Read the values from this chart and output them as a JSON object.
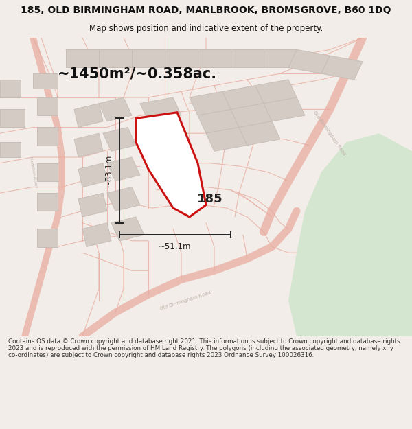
{
  "title_line1": "185, OLD BIRMINGHAM ROAD, MARLBROOK, BROMSGROVE, B60 1DQ",
  "title_line2": "Map shows position and indicative extent of the property.",
  "area_text": "~1450m²/~0.358ac.",
  "label_185": "185",
  "dim_vertical": "~83.1m",
  "dim_horizontal": "~51.1m",
  "footer_text": "Contains OS data © Crown copyright and database right 2021. This information is subject to Crown copyright and database rights 2023 and is reproduced with the permission of HM Land Registry. The polygons (including the associated geometry, namely x, y co-ordinates) are subject to Crown copyright and database rights 2023 Ordnance Survey 100026316.",
  "bg_color": "#f2ede8",
  "map_bg": "#f2ede8",
  "road_color": "#e8a89c",
  "green_color": "#d4e6d0",
  "plot_color": "#cc1111",
  "plot_fill": "#ffffff",
  "build_fill": "#d4ccc4",
  "build_edge": "#c8beb8",
  "dim_color": "#222222",
  "road_lbl": "#bbb0a8",
  "title_color": "#111111",
  "footer_color": "#333333"
}
